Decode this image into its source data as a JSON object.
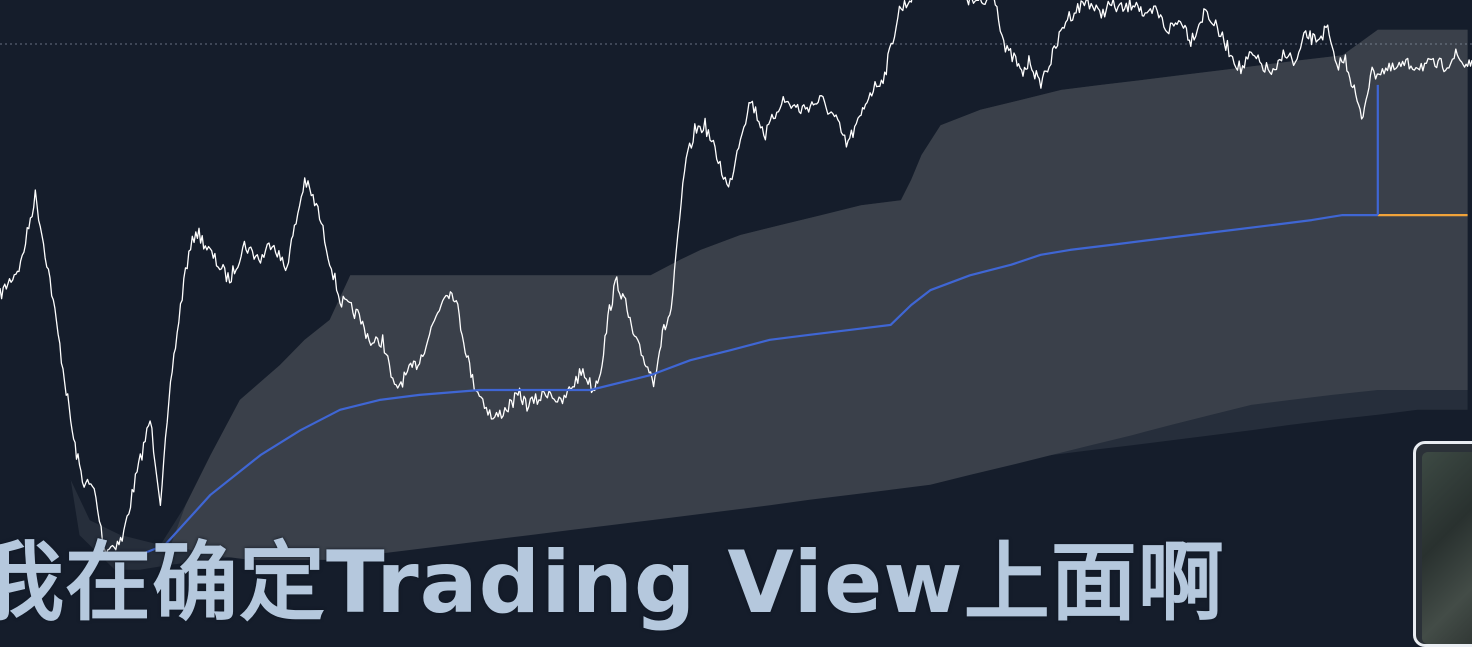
{
  "subtitle": "我在确定Trading View上面啊",
  "colors": {
    "background": "#151d2b",
    "price_line": "#ffffff",
    "band_outer": "#262e3b",
    "band_inner": "#3a404a",
    "mean_line": "#3f66d4",
    "projection_line": "#f0a33a",
    "reference_line": "#8a94a4"
  },
  "chart_data": {
    "type": "line",
    "title": "",
    "xlabel": "",
    "ylabel": "",
    "x_range": [
      0,
      100
    ],
    "y_range": [
      0,
      100
    ],
    "grid": false,
    "legend": "none",
    "reference_line_y": 92.9,
    "series": [
      {
        "role": "price",
        "x": [
          0,
          1.4,
          2.4,
          3.4,
          4.5,
          5.0,
          5.6,
          6.4,
          7.1,
          8.3,
          9.2,
          10.2,
          10.9,
          11.7,
          12.6,
          13.3,
          14.6,
          15.6,
          16.6,
          17.7,
          18.5,
          19.4,
          20.0,
          20.7,
          21.6,
          22.4,
          23.1,
          24.3,
          25.3,
          26.0,
          26.8,
          27.9,
          28.5,
          29.4,
          30.3,
          30.9,
          31.5,
          32.1,
          32.8,
          33.5,
          34.3,
          35.3,
          35.8,
          36.5,
          37.3,
          38.1,
          38.9,
          39.6,
          40.3,
          40.8,
          41.4,
          41.9,
          42.5,
          43.1,
          43.8,
          44.4,
          45.0,
          45.6,
          46.5,
          47.2,
          47.9,
          48.8,
          49.5,
          50.3,
          51.0,
          52.0,
          53.1,
          54.4,
          55.8,
          56.8,
          57.5,
          58.4,
          59.0,
          60.1,
          61.1,
          61.8,
          62.6,
          63.5,
          64.3,
          65.1,
          65.8,
          66.8,
          67.5,
          68.3,
          69.0,
          69.4,
          70.0,
          70.6,
          71.4,
          72.4,
          73.1,
          73.9,
          74.7,
          75.4,
          76.4,
          77.2,
          77.8,
          78.5,
          79.3,
          80.3,
          80.9,
          81.9,
          82.7,
          83.5,
          84.3,
          85.0,
          85.7,
          86.6,
          87.3,
          88.0,
          88.7,
          89.3,
          90.2,
          90.7,
          91.4,
          92.0,
          92.5,
          93.1,
          93.8,
          94.6,
          95.4,
          96.2,
          96.9,
          97.6,
          98.2,
          98.9,
          99.5,
          100
        ],
        "y": [
          52.4,
          57.3,
          68.5,
          54.8,
          37.1,
          29.0,
          22.6,
          21.0,
          11.3,
          12.9,
          22.6,
          32.3,
          19.4,
          40.3,
          56.5,
          62.9,
          58.1,
          54.8,
          60.5,
          58.1,
          61.3,
          56.5,
          62.9,
          71.0,
          66.1,
          58.1,
          51.6,
          49.2,
          44.4,
          45.2,
          37.1,
          40.3,
          41.9,
          47.6,
          53.2,
          52.4,
          45.2,
          38.7,
          35.5,
          32.3,
          33.9,
          36.3,
          34.7,
          35.5,
          37.1,
          34.7,
          37.9,
          40.3,
          37.1,
          40.3,
          50.0,
          54.8,
          50.8,
          45.2,
          41.9,
          38.7,
          46.0,
          50.0,
          72.6,
          79.0,
          79.8,
          74.2,
          69.4,
          78.2,
          83.9,
          78.2,
          83.9,
          82.3,
          83.9,
          80.6,
          76.6,
          80.6,
          84.7,
          87.9,
          98.4,
          100,
          104.8,
          102.4,
          103.2,
          104.8,
          100,
          99.2,
          101.6,
          91.9,
          90.3,
          87.9,
          90.3,
          86.3,
          90.3,
          96.8,
          98.4,
          100,
          97.6,
          99.2,
          98.4,
          100,
          96.8,
          98.4,
          95.2,
          96.8,
          93.5,
          98.4,
          95.2,
          91.9,
          88.7,
          91.1,
          89.5,
          87.9,
          91.9,
          89.5,
          94.4,
          93.5,
          95.2,
          89.5,
          90.3,
          85.5,
          80.6,
          87.9,
          88.7,
          88.7,
          89.5,
          89.5,
          89.5,
          89.5,
          89.5,
          91.1,
          89.5,
          90.3
        ],
        "stroke": "#ffffff"
      },
      {
        "role": "mean",
        "x": [
          9.5,
          11.2,
          14.3,
          17.7,
          20.4,
          23.1,
          25.8,
          28.5,
          32.6,
          36.7,
          40.1,
          44.2,
          46.9,
          49.6,
          52.3,
          55.0,
          57.8,
          60.5,
          61.9,
          63.2,
          65.9,
          68.7,
          70.7,
          72.7,
          75.5,
          78.2,
          80.9,
          83.7,
          86.4,
          89.1,
          91.2,
          93.6,
          93.6
        ],
        "y": [
          10.5,
          12.1,
          20.2,
          26.6,
          30.6,
          33.9,
          35.5,
          36.3,
          37.1,
          37.1,
          37.1,
          39.5,
          41.9,
          43.5,
          45.2,
          46.0,
          46.8,
          47.6,
          50.8,
          53.2,
          55.6,
          57.3,
          58.9,
          59.7,
          60.5,
          61.3,
          62.1,
          62.9,
          63.7,
          64.5,
          65.3,
          65.3,
          65.3
        ],
        "stroke": "#3f66d4"
      },
      {
        "role": "projection",
        "x": [
          93.6,
          99.7
        ],
        "y": [
          65.3,
          65.3
        ],
        "stroke": "#f0a33a"
      },
      {
        "role": "connector",
        "x": [
          93.6,
          93.6
        ],
        "y": [
          65.3,
          86.3
        ],
        "stroke": "#3f66d4"
      }
    ],
    "bands": [
      {
        "role": "outer",
        "fill": "#262e3b",
        "upper": {
          "x": [
            4.8,
            6.1,
            8.2,
            10.9,
            12.6,
            14.3,
            16.3,
            19.0,
            20.7,
            22.4,
            23.8,
            27.2,
            30.6,
            34.0,
            37.4,
            40.8,
            44.2,
            46.2,
            47.6,
            50.3,
            53.0,
            55.8,
            58.5,
            61.2,
            61.9,
            62.6,
            63.9,
            66.6,
            69.4,
            72.1,
            74.8,
            77.6,
            80.3,
            83.0,
            85.7,
            88.4,
            91.2,
            93.6,
            96.3,
            99.7
          ],
          "y": [
            22.6,
            16.1,
            13.7,
            12.1,
            18.5,
            26.6,
            35.5,
            41.1,
            45.2,
            48.4,
            55.6,
            55.6,
            55.6,
            55.6,
            55.6,
            55.6,
            55.6,
            58.1,
            59.7,
            62.1,
            63.7,
            65.3,
            66.9,
            67.7,
            71.0,
            75.0,
            79.8,
            82.3,
            83.9,
            85.5,
            86.3,
            87.1,
            87.9,
            88.7,
            89.5,
            90.3,
            91.1,
            95.2,
            95.2,
            95.2
          ]
        },
        "lower": {
          "x": [
            99.7,
            96.3,
            93.6,
            90.5,
            87.7,
            85.0,
            82.3,
            79.6,
            76.9,
            74.1,
            71.4,
            68.7,
            65.9,
            63.2,
            60.5,
            57.8,
            55.0,
            52.3,
            49.6,
            46.9,
            44.2,
            41.5,
            38.7,
            36.0,
            33.3,
            30.6,
            27.9,
            25.1,
            22.4,
            19.7,
            17.0,
            14.3,
            11.6,
            9.5,
            7.8,
            5.4,
            4.8
          ],
          "y": [
            33.9,
            33.9,
            33.1,
            32.3,
            31.5,
            30.6,
            29.8,
            29.0,
            28.2,
            27.4,
            26.6,
            25.8,
            25.0,
            24.2,
            23.4,
            22.6,
            21.8,
            21.0,
            20.2,
            19.4,
            18.5,
            17.7,
            16.9,
            16.1,
            15.3,
            14.5,
            13.7,
            12.9,
            12.1,
            11.3,
            10.5,
            9.7,
            8.9,
            8.1,
            8.1,
            13.7,
            22.6
          ]
        }
      },
      {
        "role": "inner",
        "fill": "#3a404a",
        "upper": {
          "x": [
            11.6,
            12.6,
            14.3,
            16.3,
            19.0,
            20.7,
            22.4,
            23.8,
            27.2,
            30.6,
            34.0,
            37.4,
            40.8,
            44.2,
            46.2,
            47.6,
            50.3,
            53.0,
            55.8,
            58.5,
            61.2,
            61.9,
            62.6,
            63.9,
            66.6,
            69.4,
            72.1,
            74.8,
            77.6,
            80.3,
            83.0,
            85.7,
            88.4,
            91.2,
            93.6,
            99.7
          ],
          "y": [
            12.1,
            18.5,
            26.6,
            35.5,
            41.1,
            45.2,
            48.4,
            55.6,
            55.6,
            55.6,
            55.6,
            55.6,
            55.6,
            55.6,
            58.1,
            59.7,
            62.1,
            63.7,
            65.3,
            66.9,
            67.7,
            71.0,
            75.0,
            79.8,
            82.3,
            83.9,
            85.5,
            86.3,
            87.1,
            87.9,
            88.7,
            89.5,
            90.3,
            91.1,
            95.2,
            95.2
          ]
        },
        "lower": {
          "x": [
            99.7,
            93.6,
            90.5,
            87.7,
            85.0,
            82.3,
            79.6,
            76.9,
            74.1,
            71.4,
            68.7,
            65.9,
            63.2,
            60.5,
            57.8,
            55.0,
            52.3,
            49.6,
            46.9,
            44.2,
            41.5,
            38.7,
            36.0,
            33.3,
            30.6,
            27.9,
            25.1,
            22.4,
            19.7,
            17.0,
            14.3,
            11.6
          ],
          "y": [
            37.1,
            37.1,
            36.3,
            35.5,
            34.7,
            33.1,
            31.5,
            29.8,
            28.2,
            26.6,
            25.0,
            23.4,
            21.8,
            21.0,
            20.2,
            19.4,
            18.5,
            17.7,
            16.9,
            16.1,
            15.3,
            14.5,
            13.7,
            12.9,
            12.1,
            11.3,
            10.5,
            9.7,
            9.7,
            9.7,
            10.5,
            12.1
          ]
        }
      }
    ]
  }
}
